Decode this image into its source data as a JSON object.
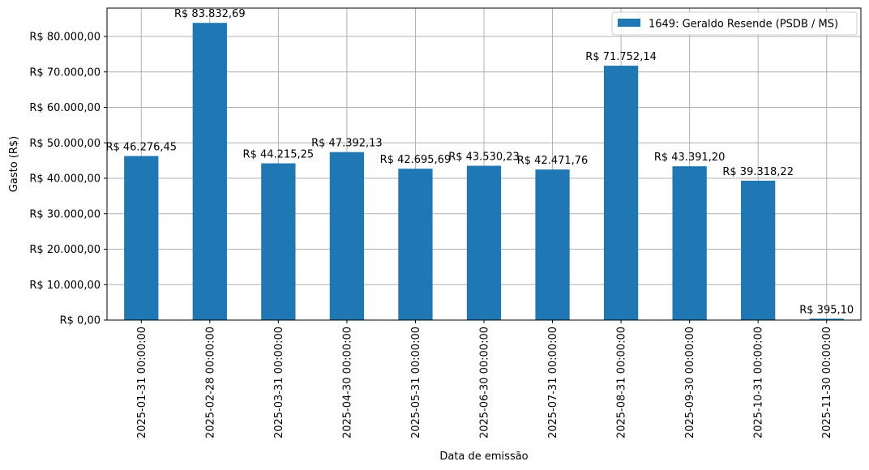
{
  "chart_data": {
    "type": "bar",
    "title": "",
    "xlabel": "Data de emissão",
    "ylabel": "Gasto (R$)",
    "ylim": [
      0,
      88000
    ],
    "grid": true,
    "legend_position": "top-right",
    "y_ticks": [
      0,
      10000,
      20000,
      30000,
      40000,
      50000,
      60000,
      70000,
      80000
    ],
    "y_tick_labels": [
      "R$ 0,00",
      "R$ 10.000,00",
      "R$ 20.000,00",
      "R$ 30.000,00",
      "R$ 40.000,00",
      "R$ 50.000,00",
      "R$ 60.000,00",
      "R$ 70.000,00",
      "R$ 80.000,00"
    ],
    "categories": [
      "2025-01-31 00:00:00",
      "2025-02-28 00:00:00",
      "2025-03-31 00:00:00",
      "2025-04-30 00:00:00",
      "2025-05-31 00:00:00",
      "2025-06-30 00:00:00",
      "2025-07-31 00:00:00",
      "2025-08-31 00:00:00",
      "2025-09-30 00:00:00",
      "2025-10-31 00:00:00",
      "2025-11-30 00:00:00"
    ],
    "series": [
      {
        "name": "1649: Geraldo Resende (PSDB / MS)",
        "color": "#1f77b4",
        "values": [
          46276.45,
          83832.69,
          44215.25,
          47392.13,
          42695.69,
          43530.23,
          42471.76,
          71752.14,
          43391.2,
          39318.22,
          395.1
        ],
        "value_labels": [
          "R$ 46.276,45",
          "R$ 83.832,69",
          "R$ 44.215,25",
          "R$ 47.392,13",
          "R$ 42.695,69",
          "R$ 43.530,23",
          "R$ 42.471,76",
          "R$ 71.752,14",
          "R$ 43.391,20",
          "R$ 39.318,22",
          "R$ 395,10"
        ]
      }
    ]
  }
}
